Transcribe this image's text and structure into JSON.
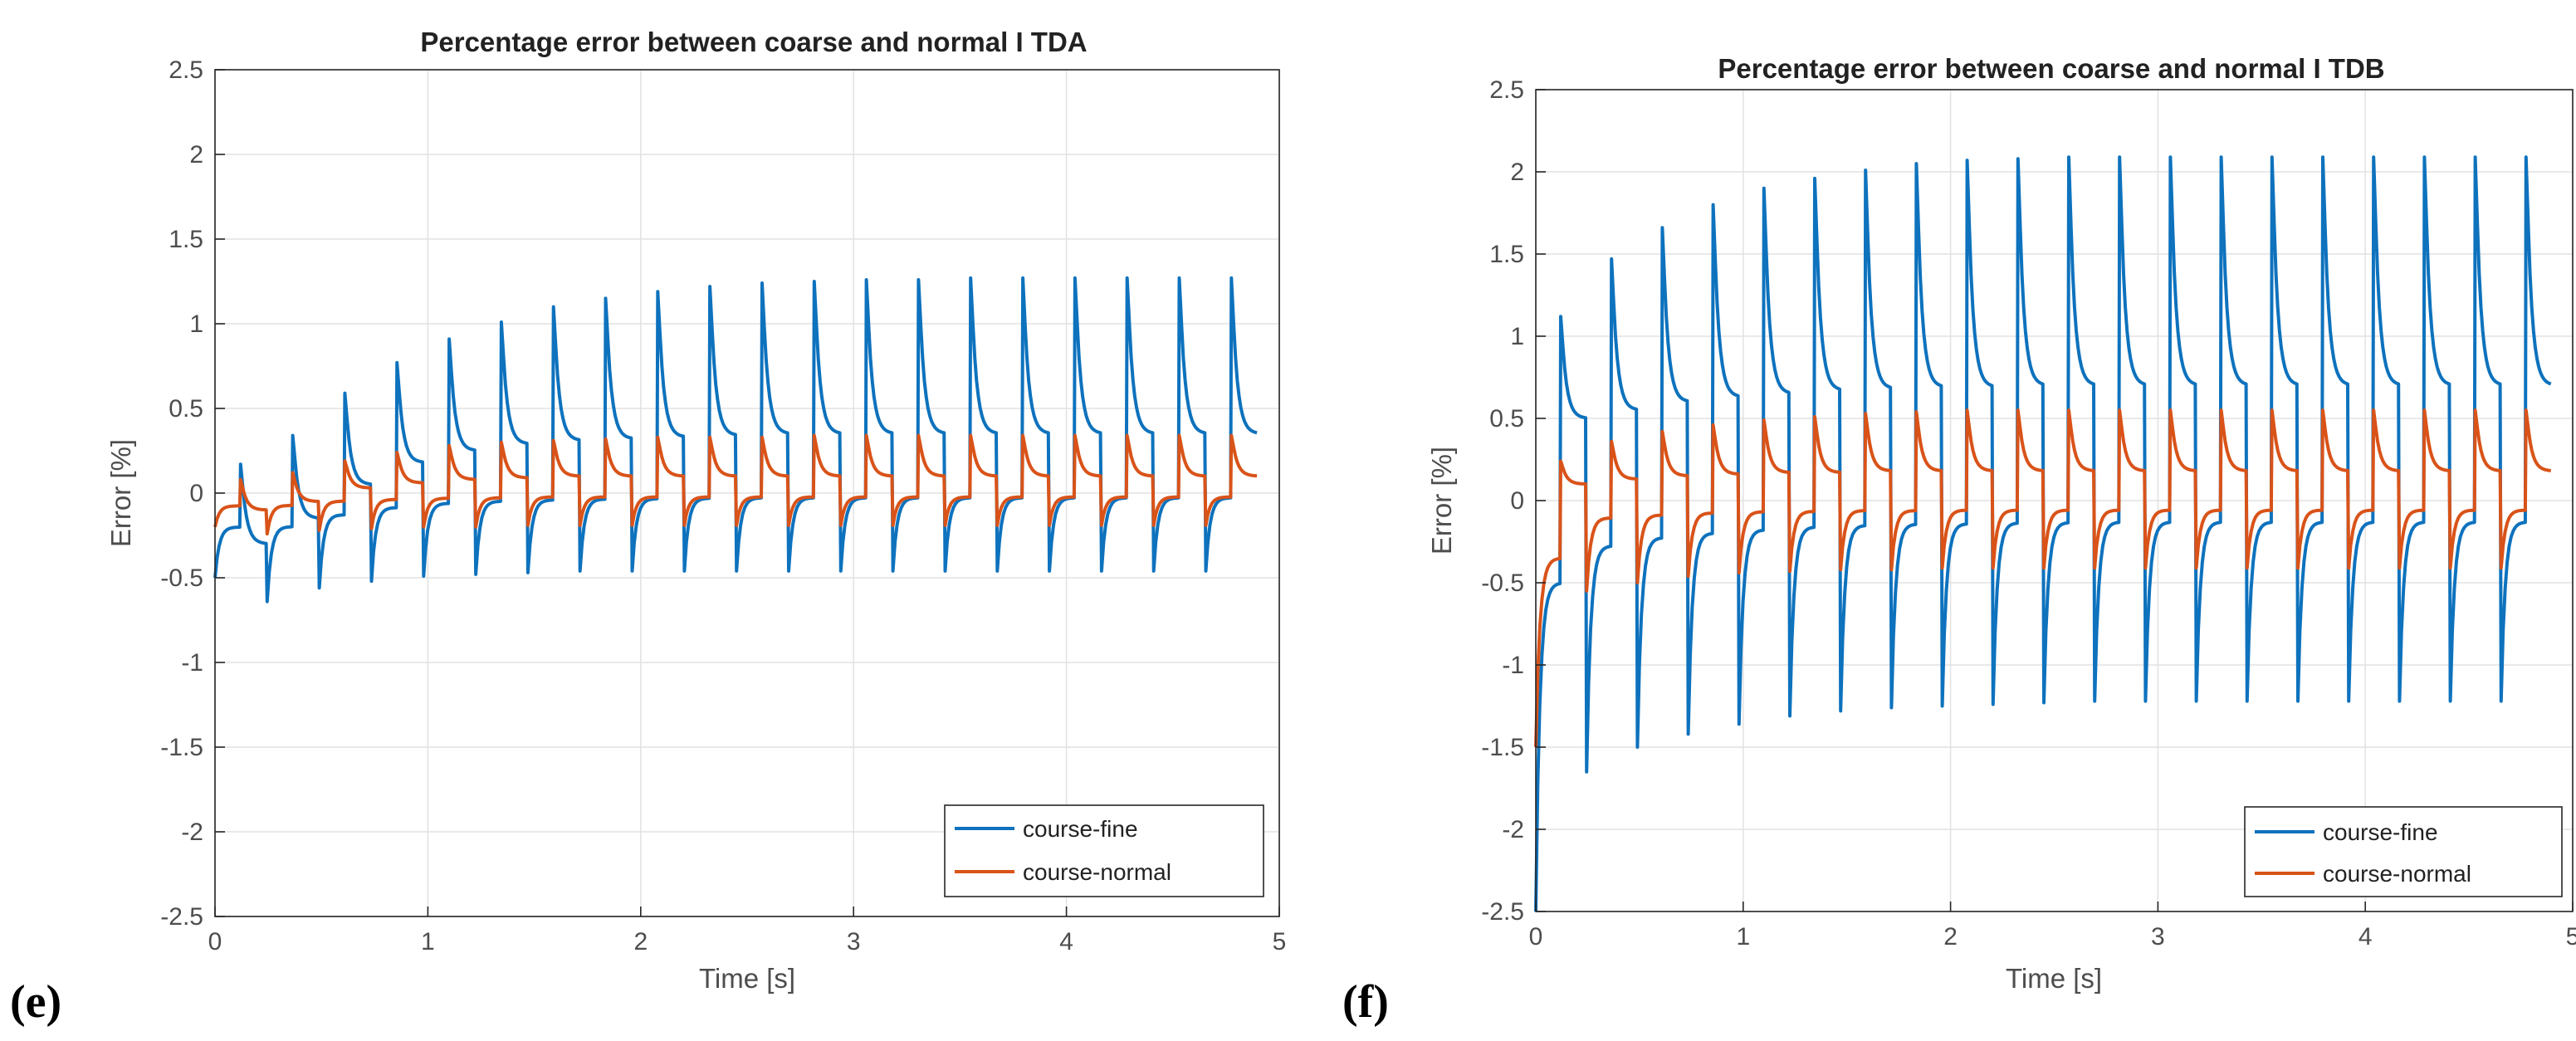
{
  "chart_data": [
    {
      "type": "line",
      "panel_label": "(e)",
      "title": "Percentage error between coarse and normal I TDA",
      "xlabel": "Time [s]",
      "ylabel": "Error [%]",
      "xlim": [
        0,
        5
      ],
      "ylim": [
        -2.5,
        2.5
      ],
      "xticks": [
        0,
        1,
        2,
        3,
        4,
        5
      ],
      "yticks": [
        -2.5,
        -2,
        -1.5,
        -1,
        -0.5,
        0,
        0.5,
        1,
        1.5,
        2,
        2.5
      ],
      "grid": true,
      "legend_position": "bottom-right",
      "period_s": 0.245,
      "series": [
        {
          "name": "course-fine",
          "color": "#0e72bd",
          "peaks": [
            0.17,
            0.34,
            0.59,
            0.77,
            0.91,
            1.01,
            1.1,
            1.15,
            1.19,
            1.22,
            1.24,
            1.25,
            1.26,
            1.26,
            1.27,
            1.27,
            1.27,
            1.27,
            1.27,
            1.27
          ],
          "troughs": [
            -0.5,
            -0.64,
            -0.56,
            -0.52,
            -0.49,
            -0.48,
            -0.47,
            -0.46,
            -0.46,
            -0.46,
            -0.46,
            -0.46,
            -0.46,
            -0.46,
            -0.46,
            -0.46,
            -0.46,
            -0.46,
            -0.46,
            -0.46
          ],
          "settle": [
            -0.3,
            -0.15,
            0.05,
            0.18,
            0.25,
            0.29,
            0.31,
            0.32,
            0.33,
            0.34,
            0.35,
            0.35,
            0.35,
            0.35,
            0.35,
            0.35,
            0.35,
            0.35,
            0.35,
            0.35
          ]
        },
        {
          "name": "course-normal",
          "color": "#d95319",
          "peaks": [
            0.08,
            0.12,
            0.19,
            0.24,
            0.28,
            0.3,
            0.31,
            0.32,
            0.33,
            0.33,
            0.33,
            0.34,
            0.34,
            0.34,
            0.34,
            0.34,
            0.34,
            0.34,
            0.34,
            0.34
          ],
          "troughs": [
            -0.2,
            -0.24,
            -0.22,
            -0.21,
            -0.2,
            -0.2,
            -0.19,
            -0.19,
            -0.19,
            -0.19,
            -0.19,
            -0.19,
            -0.19,
            -0.19,
            -0.19,
            -0.19,
            -0.19,
            -0.19,
            -0.19,
            -0.19
          ],
          "settle": [
            -0.1,
            -0.05,
            0.03,
            0.06,
            0.08,
            0.09,
            0.1,
            0.1,
            0.1,
            0.1,
            0.1,
            0.1,
            0.1,
            0.1,
            0.1,
            0.1,
            0.1,
            0.1,
            0.1,
            0.1
          ]
        }
      ]
    },
    {
      "type": "line",
      "panel_label": "(f)",
      "title": "Percentage error between coarse and normal I TDB",
      "xlabel": "Time [s]",
      "ylabel": "Error [%]",
      "xlim": [
        0,
        5
      ],
      "ylim": [
        -2.5,
        2.5
      ],
      "xticks": [
        0,
        1,
        2,
        3,
        4,
        5
      ],
      "yticks": [
        -2.5,
        -2,
        -1.5,
        -1,
        -0.5,
        0,
        0.5,
        1,
        1.5,
        2,
        2.5
      ],
      "grid": true,
      "legend_position": "bottom-right",
      "period_s": 0.245,
      "series": [
        {
          "name": "course-fine",
          "color": "#0e72bd",
          "peaks": [
            1.12,
            1.47,
            1.66,
            1.8,
            1.9,
            1.96,
            2.01,
            2.05,
            2.07,
            2.08,
            2.09,
            2.09,
            2.09,
            2.09,
            2.09,
            2.09,
            2.09,
            2.09,
            2.09,
            2.09
          ],
          "troughs": [
            -2.5,
            -1.65,
            -1.5,
            -1.42,
            -1.36,
            -1.31,
            -1.28,
            -1.26,
            -1.25,
            -1.24,
            -1.23,
            -1.22,
            -1.22,
            -1.22,
            -1.22,
            -1.22,
            -1.22,
            -1.22,
            -1.22,
            -1.22
          ],
          "settle": [
            0.5,
            0.55,
            0.6,
            0.63,
            0.65,
            0.67,
            0.68,
            0.69,
            0.69,
            0.7,
            0.7,
            0.7,
            0.7,
            0.7,
            0.7,
            0.7,
            0.7,
            0.7,
            0.7,
            0.7
          ]
        },
        {
          "name": "course-normal",
          "color": "#d95319",
          "peaks": [
            0.24,
            0.36,
            0.42,
            0.46,
            0.49,
            0.51,
            0.53,
            0.54,
            0.55,
            0.55,
            0.55,
            0.55,
            0.55,
            0.55,
            0.55,
            0.55,
            0.55,
            0.55,
            0.55,
            0.55
          ],
          "troughs": [
            -1.5,
            -0.55,
            -0.5,
            -0.46,
            -0.44,
            -0.43,
            -0.42,
            -0.42,
            -0.41,
            -0.41,
            -0.41,
            -0.41,
            -0.41,
            -0.41,
            -0.41,
            -0.41,
            -0.41,
            -0.41,
            -0.41,
            -0.41
          ],
          "settle": [
            0.1,
            0.13,
            0.15,
            0.16,
            0.17,
            0.17,
            0.18,
            0.18,
            0.18,
            0.18,
            0.18,
            0.18,
            0.18,
            0.18,
            0.18,
            0.18,
            0.18,
            0.18,
            0.18,
            0.18
          ]
        }
      ]
    }
  ]
}
